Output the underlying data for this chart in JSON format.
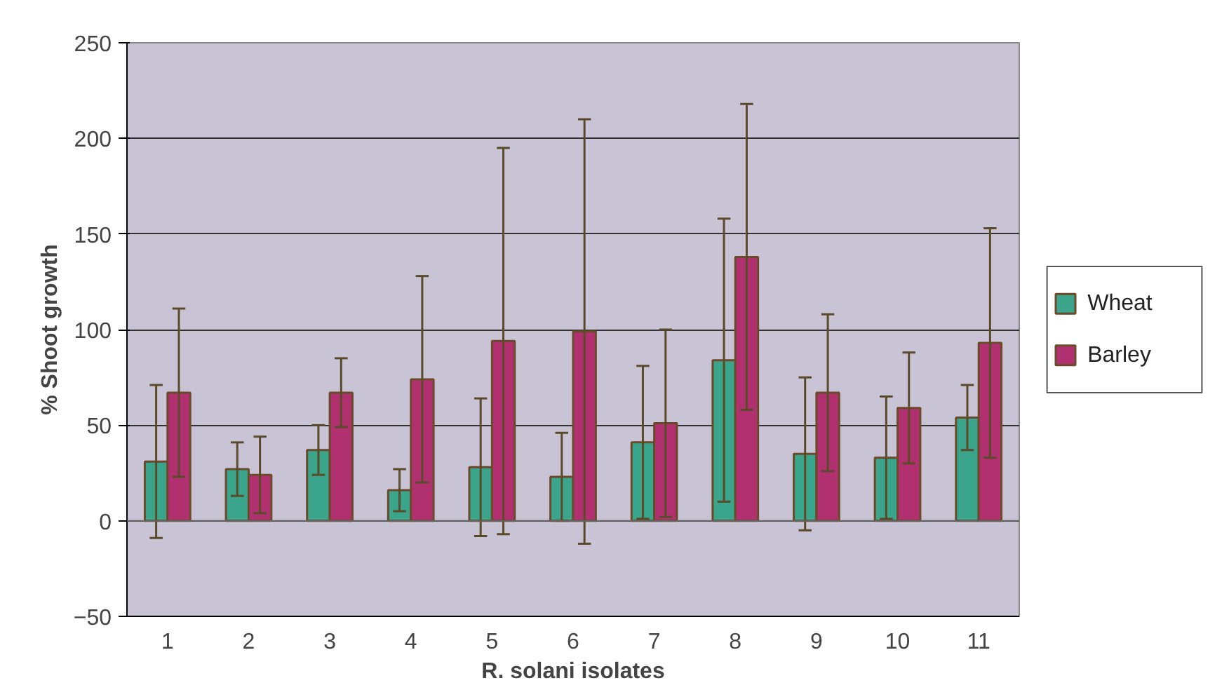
{
  "chart_data": {
    "type": "bar",
    "xlabel": "R. solani isolates",
    "ylabel": "% Shoot growth",
    "categories": [
      "1",
      "2",
      "3",
      "4",
      "5",
      "6",
      "7",
      "8",
      "9",
      "10",
      "11"
    ],
    "series": [
      {
        "name": "Wheat",
        "color": "#3aa58a",
        "values": [
          31,
          27,
          37,
          16,
          28,
          23,
          41,
          84,
          35,
          33,
          54
        ],
        "errors": [
          40,
          14,
          13,
          11,
          36,
          23,
          40,
          74,
          40,
          32,
          17
        ]
      },
      {
        "name": "Barley",
        "color": "#b03070",
        "values": [
          67,
          24,
          67,
          74,
          94,
          99,
          51,
          138,
          67,
          59,
          93
        ],
        "errors": [
          44,
          20,
          18,
          54,
          101,
          111,
          49,
          80,
          41,
          29,
          60
        ]
      }
    ],
    "ylim": [
      -50,
      250
    ],
    "yticks": [
      -50,
      0,
      50,
      100,
      150,
      200,
      250
    ],
    "grid": "y",
    "legend": "right"
  }
}
